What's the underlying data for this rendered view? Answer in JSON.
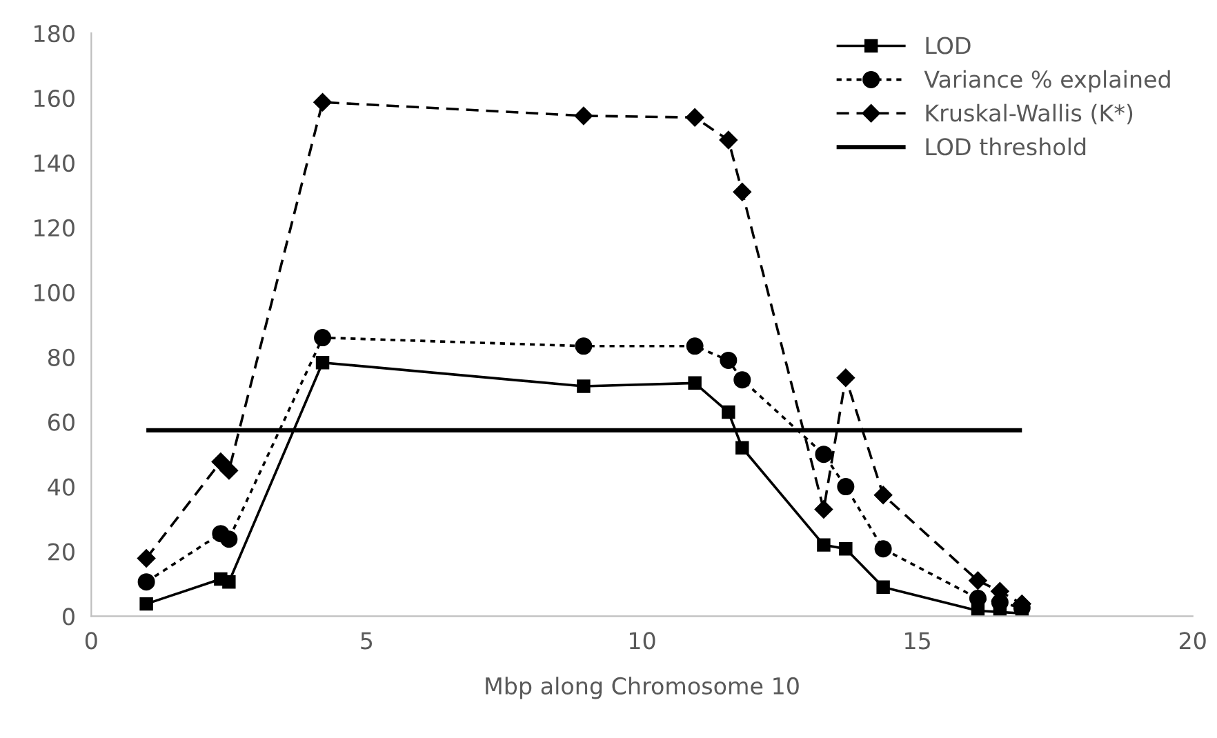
{
  "chart_data": {
    "type": "line",
    "xlabel": "Mbp along Chromosome 10",
    "xlim": [
      0,
      20
    ],
    "xticks": [
      0,
      5,
      10,
      15,
      20
    ],
    "ylim": [
      0,
      180
    ],
    "yticks": [
      0,
      20,
      40,
      60,
      80,
      100,
      120,
      140,
      160,
      180
    ],
    "grid": false,
    "legend": "top right",
    "series": [
      {
        "name": "LOD",
        "color": "#000000",
        "marker": "square",
        "line_style": "solid",
        "x": [
          1.0,
          2.35,
          2.5,
          4.2,
          8.94,
          10.96,
          11.57,
          11.82,
          13.3,
          13.7,
          14.38,
          16.1,
          16.5,
          16.9
        ],
        "values": [
          3.8,
          11.5,
          10.6,
          78.3,
          71,
          72,
          63,
          52,
          22,
          20.8,
          9,
          1.7,
          1.3,
          0.9
        ]
      },
      {
        "name": "Variance % explained",
        "color": "#000000",
        "marker": "circle",
        "line_style": "dotted",
        "x": [
          1.0,
          2.35,
          2.5,
          4.2,
          8.94,
          10.96,
          11.57,
          11.82,
          13.3,
          13.7,
          14.38,
          16.1,
          16.5,
          16.9
        ],
        "values": [
          10.6,
          25.5,
          23.8,
          86,
          83.4,
          83.4,
          79,
          73,
          50,
          40,
          20.8,
          5.5,
          4.3,
          2.6
        ]
      },
      {
        "name": "Kruskal-Wallis (K*)",
        "color": "#000000",
        "marker": "diamond",
        "line_style": "dashed",
        "x": [
          1.0,
          2.35,
          2.5,
          4.2,
          8.94,
          10.96,
          11.57,
          11.82,
          13.3,
          13.7,
          14.38,
          16.1,
          16.5,
          16.9
        ],
        "values": [
          17.9,
          47.7,
          45,
          158.7,
          154.5,
          154,
          147,
          131,
          33,
          73.6,
          37.4,
          11,
          7.7,
          3.8
        ]
      },
      {
        "name": "LOD threshold",
        "color": "#000000",
        "marker": "none",
        "line_style": "solid",
        "x": [
          1.0,
          16.9
        ],
        "values": [
          57.4,
          57.4
        ]
      }
    ]
  }
}
